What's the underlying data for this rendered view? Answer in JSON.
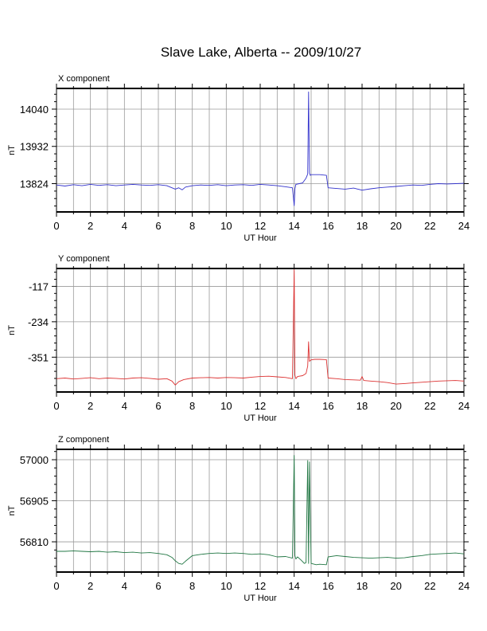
{
  "title": "Slave Lake, Alberta -- 2009/10/27",
  "chart_data": [
    {
      "type": "line",
      "title": "X component",
      "xlabel": "UT Hour",
      "ylabel": "nT",
      "xlim": [
        0,
        24
      ],
      "ylim": [
        13742,
        14100
      ],
      "xticks": [
        0,
        2,
        4,
        6,
        8,
        10,
        12,
        14,
        16,
        18,
        20,
        22,
        24
      ],
      "yticks": [
        13824,
        13932,
        14040
      ],
      "grid": true,
      "color": "#3333cc",
      "series": [
        {
          "x": [
            0,
            0.5,
            1,
            1.5,
            2,
            2.5,
            3,
            3.5,
            4,
            4.5,
            5,
            5.5,
            6,
            6.5,
            7,
            7.2,
            7.4,
            7.6,
            8,
            8.5,
            9,
            9.5,
            10,
            10.5,
            11,
            11.5,
            12,
            12.5,
            13,
            13.5,
            13.9,
            14.0,
            14.05,
            14.1,
            14.3,
            14.5,
            14.7,
            14.8,
            14.85,
            14.9,
            14.95,
            15.0,
            15.5,
            15.9,
            16.0,
            16.5,
            17,
            17.5,
            18,
            18.5,
            19,
            19.5,
            20,
            20.5,
            21,
            21.5,
            22,
            22.5,
            23,
            23.5,
            24
          ],
          "y": [
            13820,
            13817,
            13821,
            13818,
            13822,
            13819,
            13821,
            13818,
            13820,
            13822,
            13820,
            13819,
            13821,
            13818,
            13808,
            13812,
            13806,
            13814,
            13818,
            13820,
            13819,
            13821,
            13818,
            13820,
            13821,
            13819,
            13822,
            13820,
            13818,
            13815,
            13812,
            13760,
            13810,
            13822,
            13824,
            13826,
            13840,
            13852,
            14090,
            13855,
            13848,
            13850,
            13850,
            13848,
            13812,
            13810,
            13808,
            13811,
            13805,
            13809,
            13812,
            13814,
            13816,
            13818,
            13820,
            13819,
            13822,
            13824,
            13823,
            13824,
            13825
          ]
        }
      ]
    },
    {
      "type": "line",
      "title": "Y component",
      "xlabel": "UT Hour",
      "ylabel": "nT",
      "xlim": [
        0,
        24
      ],
      "ylim": [
        -466,
        -58
      ],
      "xticks": [
        0,
        2,
        4,
        6,
        8,
        10,
        12,
        14,
        16,
        18,
        20,
        22,
        24
      ],
      "yticks": [
        -351,
        -234,
        -117
      ],
      "grid": true,
      "color": "#dd3333",
      "series": [
        {
          "x": [
            0,
            0.5,
            1,
            1.5,
            2,
            2.5,
            3,
            3.5,
            4,
            4.5,
            5,
            5.5,
            6,
            6.5,
            6.8,
            7.0,
            7.2,
            7.5,
            8,
            8.5,
            9,
            9.5,
            10,
            10.5,
            11,
            11.5,
            12,
            12.5,
            13,
            13.5,
            13.9,
            14.0,
            14.05,
            14.1,
            14.2,
            14.5,
            14.7,
            14.8,
            14.85,
            14.9,
            15.0,
            15.2,
            15.5,
            15.9,
            16.0,
            16.5,
            17,
            17.5,
            17.9,
            18.0,
            18.1,
            18.5,
            19,
            19.5,
            20,
            20.5,
            21,
            21.5,
            22,
            22.5,
            23,
            23.5,
            24
          ],
          "y": [
            -422,
            -420,
            -423,
            -421,
            -419,
            -422,
            -420,
            -421,
            -423,
            -420,
            -419,
            -421,
            -424,
            -422,
            -430,
            -443,
            -432,
            -425,
            -420,
            -419,
            -418,
            -420,
            -418,
            -419,
            -420,
            -417,
            -415,
            -414,
            -416,
            -418,
            -422,
            -62,
            -410,
            -422,
            -415,
            -412,
            -405,
            -380,
            -300,
            -365,
            -360,
            -358,
            -358,
            -359,
            -420,
            -422,
            -425,
            -426,
            -427,
            -415,
            -428,
            -430,
            -432,
            -435,
            -440,
            -438,
            -436,
            -434,
            -432,
            -430,
            -429,
            -428,
            -430
          ]
        }
      ]
    },
    {
      "type": "line",
      "title": "Z component",
      "xlabel": "UT Hour",
      "ylabel": "nT",
      "xlim": [
        0,
        24
      ],
      "ylim": [
        56740,
        57024
      ],
      "xticks": [
        0,
        2,
        4,
        6,
        8,
        10,
        12,
        14,
        16,
        18,
        20,
        22,
        24
      ],
      "yticks": [
        56810,
        56905,
        57000
      ],
      "grid": true,
      "color": "#227744",
      "series": [
        {
          "x": [
            0,
            0.5,
            1,
            1.5,
            2,
            2.5,
            3,
            3.5,
            4,
            4.5,
            5,
            5.5,
            6,
            6.5,
            6.8,
            7.0,
            7.2,
            7.4,
            7.6,
            8,
            8.5,
            9,
            9.5,
            10,
            10.5,
            11,
            11.5,
            12,
            12.5,
            13,
            13.5,
            13.9,
            14.0,
            14.05,
            14.1,
            14.2,
            14.4,
            14.6,
            14.7,
            14.8,
            14.85,
            14.9,
            15.0,
            15.3,
            15.5,
            15.9,
            16.0,
            16.5,
            17,
            17.5,
            18,
            18.5,
            19,
            19.5,
            20,
            20.5,
            21,
            21.5,
            22,
            22.5,
            23,
            23.5,
            24
          ],
          "y": [
            56788,
            56788,
            56789,
            56788,
            56787,
            56788,
            56786,
            56787,
            56785,
            56786,
            56784,
            56785,
            56783,
            56780,
            56774,
            56766,
            56760,
            56758,
            56765,
            56778,
            56781,
            56783,
            56784,
            56783,
            56784,
            56783,
            56781,
            56782,
            56780,
            56775,
            56776,
            56772,
            57010,
            56778,
            56770,
            56775,
            56768,
            56760,
            56762,
            56998,
            56760,
            56995,
            56760,
            56757,
            56758,
            56757,
            56775,
            56778,
            56776,
            56774,
            56773,
            56772,
            56773,
            56774,
            56772,
            56773,
            56776,
            56778,
            56781,
            56782,
            56783,
            56784,
            56782
          ]
        }
      ]
    }
  ]
}
